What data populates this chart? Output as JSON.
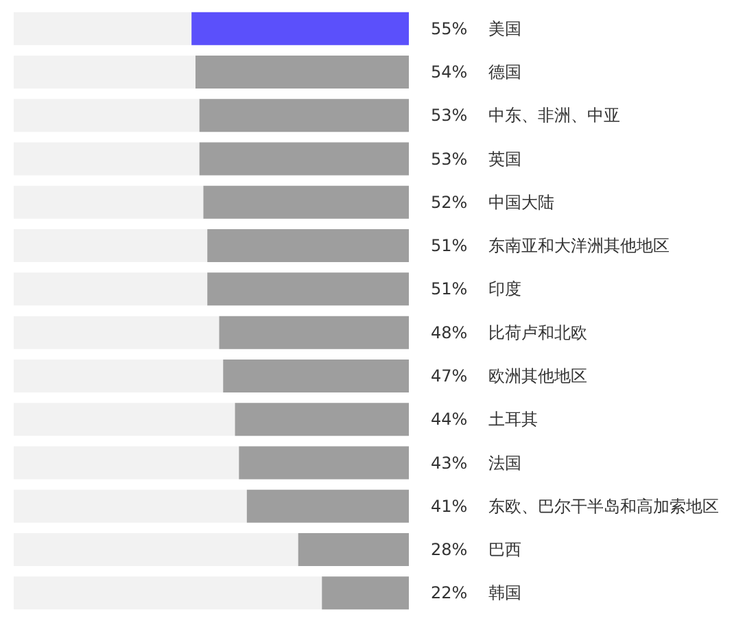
{
  "chart_data": {
    "type": "bar",
    "orientation": "horizontal",
    "categories": [
      "美国",
      "德国",
      "中东、非洲、中亚",
      "英国",
      "中国大陆",
      "东南亚和大洋洲其他地区",
      "印度",
      "比荷卢和北欧",
      "欧洲其他地区",
      "土耳其",
      "法国",
      "东欧、巴尔干半岛和高加索地区",
      "巴西",
      "韩国"
    ],
    "values": [
      55,
      54,
      53,
      53,
      52,
      51,
      51,
      48,
      47,
      44,
      43,
      41,
      28,
      22
    ],
    "value_labels": [
      "55%",
      "54%",
      "53%",
      "53%",
      "52%",
      "51%",
      "51%",
      "48%",
      "47%",
      "44%",
      "43%",
      "41%",
      "28%",
      "22%"
    ],
    "colors": [
      "#5b50fb",
      "#9e9e9e",
      "#9e9e9e",
      "#9e9e9e",
      "#9e9e9e",
      "#9e9e9e",
      "#9e9e9e",
      "#9e9e9e",
      "#9e9e9e",
      "#9e9e9e",
      "#9e9e9e",
      "#9e9e9e",
      "#9e9e9e",
      "#9e9e9e"
    ],
    "xlim": [
      100,
      0
    ]
  }
}
